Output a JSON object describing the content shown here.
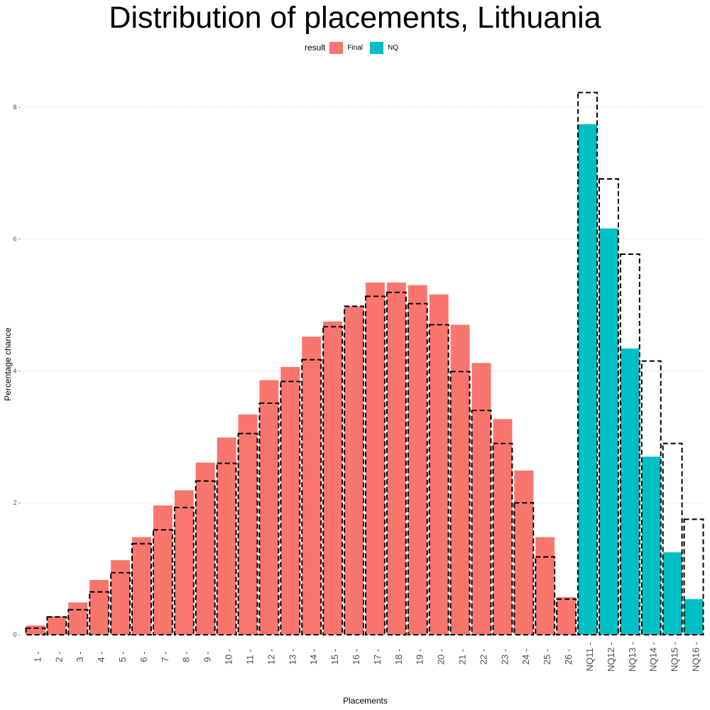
{
  "chart_data": {
    "type": "bar",
    "title": "Distribution of placements, Lithuania",
    "xlabel": "Placements",
    "ylabel": "Percentage chance",
    "ylim": [
      0,
      8.5
    ],
    "yticks": [
      0,
      2,
      4,
      6,
      8
    ],
    "grid": "horizontal dotted",
    "legend": {
      "title": "result",
      "placement": "top",
      "entries": [
        {
          "label": "Final",
          "color": "#F8766D"
        },
        {
          "label": "NQ",
          "color": "#00BFC4"
        }
      ]
    },
    "categories": [
      "1",
      "2",
      "3",
      "4",
      "5",
      "6",
      "7",
      "8",
      "9",
      "10",
      "11",
      "12",
      "13",
      "14",
      "15",
      "16",
      "17",
      "18",
      "19",
      "20",
      "21",
      "22",
      "23",
      "24",
      "25",
      "26",
      "NQ11",
      "NQ12",
      "NQ13",
      "NQ14",
      "NQ15",
      "NQ16"
    ],
    "tick_labels": [
      "1 -",
      "2 -",
      "3 -",
      "4 -",
      "5 -",
      "6 -",
      "7 -",
      "8 -",
      "9 -",
      "10 -",
      "11 -",
      "12 -",
      "13 -",
      "14 -",
      "15 -",
      "16 -",
      "17 -",
      "18 -",
      "19 -",
      "20 -",
      "21 -",
      "22 -",
      "23 -",
      "24 -",
      "25 -",
      "26 -",
      "NQ11 -",
      "NQ12 -",
      "NQ13 -",
      "NQ14 -",
      "NQ15 -",
      "NQ16 -"
    ],
    "result": [
      "Final",
      "Final",
      "Final",
      "Final",
      "Final",
      "Final",
      "Final",
      "Final",
      "Final",
      "Final",
      "Final",
      "Final",
      "Final",
      "Final",
      "Final",
      "Final",
      "Final",
      "Final",
      "Final",
      "Final",
      "Final",
      "Final",
      "Final",
      "Final",
      "Final",
      "Final",
      "NQ",
      "NQ",
      "NQ",
      "NQ",
      "NQ",
      "NQ"
    ],
    "values": [
      0.14,
      0.28,
      0.49,
      0.83,
      1.13,
      1.48,
      1.96,
      2.19,
      2.61,
      2.99,
      3.34,
      3.86,
      4.06,
      4.52,
      4.75,
      4.98,
      5.34,
      5.34,
      5.3,
      5.16,
      4.7,
      4.12,
      3.27,
      2.49,
      1.48,
      0.57,
      7.74,
      6.16,
      4.34,
      2.7,
      1.25,
      0.54
    ],
    "reference_values": [
      0.1,
      0.27,
      0.38,
      0.65,
      0.94,
      1.38,
      1.59,
      1.93,
      2.33,
      2.6,
      3.05,
      3.51,
      3.84,
      4.17,
      4.67,
      4.98,
      5.13,
      5.19,
      5.02,
      4.7,
      3.99,
      3.4,
      2.9,
      2.0,
      1.18,
      0.54,
      8.22,
      6.91,
      5.77,
      4.15,
      2.9,
      1.75
    ],
    "reference_style": "dashed outline"
  }
}
